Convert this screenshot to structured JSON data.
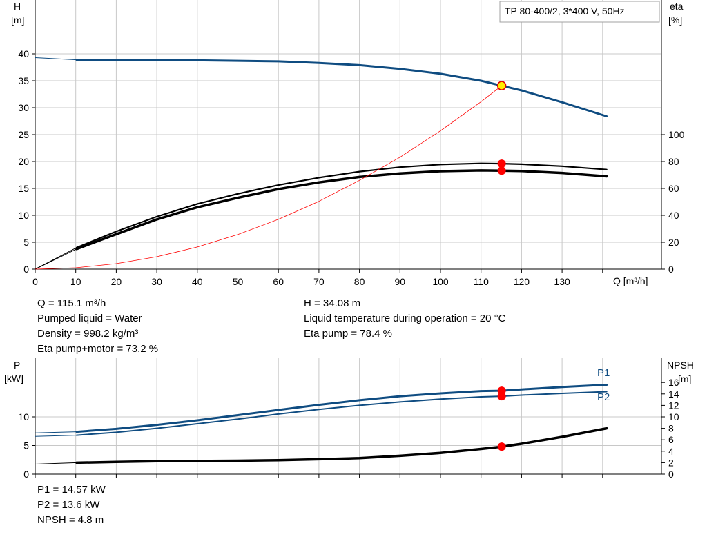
{
  "model_label": "TP 80-400/2, 3*400 V, 50Hz",
  "chart_data": [
    {
      "type": "line",
      "title": "",
      "ylabel": "H",
      "ylabel_unit": "[m]",
      "y2label": "eta",
      "y2label_unit": "[%]",
      "xlabel": "Q [m³/h]",
      "xlim": [
        0,
        150
      ],
      "ylim": [
        0,
        40
      ],
      "y2lim": [
        0,
        100
      ],
      "x_ticks": [
        "0",
        "10",
        "20",
        "30",
        "40",
        "50",
        "60",
        "70",
        "80",
        "90",
        "100",
        "110",
        "120",
        "130"
      ],
      "y_ticks": [
        "0",
        "5",
        "10",
        "15",
        "20",
        "25",
        "30",
        "35",
        "40"
      ],
      "y2_ticks": [
        "0",
        "20",
        "40",
        "60",
        "80",
        "100"
      ],
      "grid": true,
      "series": [
        {
          "id": "head",
          "axis": "left",
          "color": "#0f4c81",
          "points": [
            [
              10.2,
              38.9
            ],
            [
              20,
              38.8
            ],
            [
              30,
              38.8
            ],
            [
              40,
              38.8
            ],
            [
              50,
              38.7
            ],
            [
              60,
              38.6
            ],
            [
              70,
              38.3
            ],
            [
              80,
              37.9
            ],
            [
              90,
              37.2
            ],
            [
              100,
              36.3
            ],
            [
              110,
              35.0
            ],
            [
              115.1,
              34.08
            ],
            [
              120,
              33.2
            ],
            [
              130,
              31.0
            ],
            [
              141,
              28.4
            ]
          ]
        },
        {
          "id": "head-extension",
          "axis": "left",
          "color": "#0f4c81",
          "thin": true,
          "points": [
            [
              0,
              39.3
            ],
            [
              10.2,
              38.9
            ]
          ]
        },
        {
          "id": "eta-pump",
          "axis": "right",
          "color": "#000000",
          "points": [
            [
              10.2,
              16
            ],
            [
              20,
              28
            ],
            [
              30,
              39
            ],
            [
              40,
              48.5
            ],
            [
              50,
              56
            ],
            [
              60,
              62.5
            ],
            [
              70,
              68
            ],
            [
              80,
              72.5
            ],
            [
              90,
              75.8
            ],
            [
              100,
              77.8
            ],
            [
              110,
              78.6
            ],
            [
              115.1,
              78.4
            ],
            [
              120,
              78
            ],
            [
              130,
              76.5
            ],
            [
              141,
              74
            ]
          ]
        },
        {
          "id": "eta-pump-extension",
          "axis": "right",
          "color": "#000000",
          "thin": true,
          "points": [
            [
              0,
              0
            ],
            [
              10.2,
              16
            ]
          ]
        },
        {
          "id": "eta-pump-motor",
          "axis": "right",
          "color": "#000000",
          "thick": true,
          "points": [
            [
              10.2,
              15
            ],
            [
              20,
              26
            ],
            [
              30,
              37
            ],
            [
              40,
              46
            ],
            [
              50,
              53
            ],
            [
              60,
              59.5
            ],
            [
              70,
              64.5
            ],
            [
              80,
              68.5
            ],
            [
              90,
              71.2
            ],
            [
              100,
              72.8
            ],
            [
              110,
              73.4
            ],
            [
              115.1,
              73.2
            ],
            [
              120,
              72.9
            ],
            [
              130,
              71.5
            ],
            [
              141,
              69
            ]
          ]
        },
        {
          "id": "eta-pump-motor-extension",
          "axis": "right",
          "color": "#000000",
          "thin": true,
          "points": [
            [
              0,
              0
            ],
            [
              10.2,
              15
            ]
          ]
        },
        {
          "id": "system-curve",
          "axis": "left",
          "color": "#ff0000",
          "thin": true,
          "points": [
            [
              0,
              0
            ],
            [
              10,
              0.26
            ],
            [
              20,
              1.03
            ],
            [
              30,
              2.31
            ],
            [
              40,
              4.11
            ],
            [
              50,
              6.43
            ],
            [
              60,
              9.26
            ],
            [
              70,
              12.6
            ],
            [
              80,
              16.5
            ],
            [
              90,
              20.8
            ],
            [
              100,
              25.7
            ],
            [
              110,
              31.1
            ],
            [
              115.1,
              34.08
            ]
          ]
        }
      ],
      "markers": [
        {
          "axis": "left",
          "x": 115.1,
          "y": 34.08,
          "style": "operating-point"
        },
        {
          "axis": "right",
          "x": 115.1,
          "y": 78.4,
          "style": "duty"
        },
        {
          "axis": "right",
          "x": 115.1,
          "y": 73.2,
          "style": "duty"
        }
      ]
    },
    {
      "type": "line",
      "title": "",
      "ylabel": "P",
      "ylabel_unit": "[kW]",
      "y2label": "NPSH",
      "y2label_unit": "[m]",
      "xlim": [
        0,
        150
      ],
      "ylim": [
        0,
        20
      ],
      "y2lim": [
        0,
        20
      ],
      "y_ticks": [
        "0",
        "5",
        "10"
      ],
      "y2_ticks": [
        "0",
        "2",
        "4",
        "6",
        "8",
        "10",
        "12",
        "14",
        "16"
      ],
      "y2_tick_values": [
        0,
        2,
        4,
        6,
        8,
        10,
        12,
        14,
        16
      ],
      "grid": true,
      "series": [
        {
          "id": "p1",
          "name": "P1",
          "axis": "left",
          "color": "#0f4c81",
          "points": [
            [
              10.2,
              7.4
            ],
            [
              20,
              7.9
            ],
            [
              30,
              8.6
            ],
            [
              40,
              9.4
            ],
            [
              50,
              10.3
            ],
            [
              60,
              11.2
            ],
            [
              70,
              12.1
            ],
            [
              80,
              12.9
            ],
            [
              90,
              13.6
            ],
            [
              100,
              14.1
            ],
            [
              110,
              14.5
            ],
            [
              115.1,
              14.57
            ],
            [
              120,
              14.8
            ],
            [
              130,
              15.2
            ],
            [
              141,
              15.6
            ]
          ]
        },
        {
          "id": "p1-extension",
          "axis": "left",
          "color": "#0f4c81",
          "thin": true,
          "points": [
            [
              0,
              7.2
            ],
            [
              10.2,
              7.4
            ]
          ]
        },
        {
          "id": "p2",
          "name": "P2",
          "axis": "left",
          "color": "#0f4c81",
          "points": [
            [
              10.2,
              6.8
            ],
            [
              20,
              7.3
            ],
            [
              30,
              8.0
            ],
            [
              40,
              8.8
            ],
            [
              50,
              9.6
            ],
            [
              60,
              10.5
            ],
            [
              70,
              11.3
            ],
            [
              80,
              12.0
            ],
            [
              90,
              12.6
            ],
            [
              100,
              13.1
            ],
            [
              110,
              13.5
            ],
            [
              115.1,
              13.6
            ],
            [
              120,
              13.8
            ],
            [
              130,
              14.1
            ],
            [
              141,
              14.4
            ]
          ]
        },
        {
          "id": "p2-extension",
          "axis": "left",
          "color": "#0f4c81",
          "thin": true,
          "points": [
            [
              0,
              6.6
            ],
            [
              10.2,
              6.8
            ]
          ]
        },
        {
          "id": "npsh",
          "axis": "right",
          "color": "#000000",
          "thick": true,
          "points": [
            [
              10.2,
              2.0
            ],
            [
              20,
              2.15
            ],
            [
              30,
              2.25
            ],
            [
              40,
              2.3
            ],
            [
              50,
              2.35
            ],
            [
              60,
              2.45
            ],
            [
              70,
              2.6
            ],
            [
              80,
              2.8
            ],
            [
              90,
              3.2
            ],
            [
              100,
              3.7
            ],
            [
              110,
              4.4
            ],
            [
              115.1,
              4.8
            ],
            [
              120,
              5.3
            ],
            [
              130,
              6.5
            ],
            [
              141,
              8.0
            ]
          ]
        },
        {
          "id": "npsh-extension",
          "axis": "right",
          "color": "#000000",
          "thin": true,
          "points": [
            [
              0,
              1.75
            ],
            [
              10.2,
              2.0
            ]
          ]
        }
      ],
      "markers": [
        {
          "axis": "left",
          "x": 115.1,
          "y": 14.57,
          "style": "duty"
        },
        {
          "axis": "left",
          "x": 115.1,
          "y": 13.6,
          "style": "duty"
        },
        {
          "axis": "right",
          "x": 115.1,
          "y": 4.8,
          "style": "duty"
        }
      ]
    }
  ],
  "info_upper_left": [
    "Q = 115.1 m³/h",
    "Pumped liquid = Water",
    "Density = 998.2 kg/m³",
    "Eta pump+motor = 73.2 %"
  ],
  "info_upper_right": [
    "H = 34.08 m",
    "Liquid temperature during operation = 20 °C",
    "Eta pump = 78.4 %"
  ],
  "info_lower": [
    "P1 = 14.57 kW",
    "P2 = 13.6 kW",
    "NPSH = 4.8 m"
  ]
}
